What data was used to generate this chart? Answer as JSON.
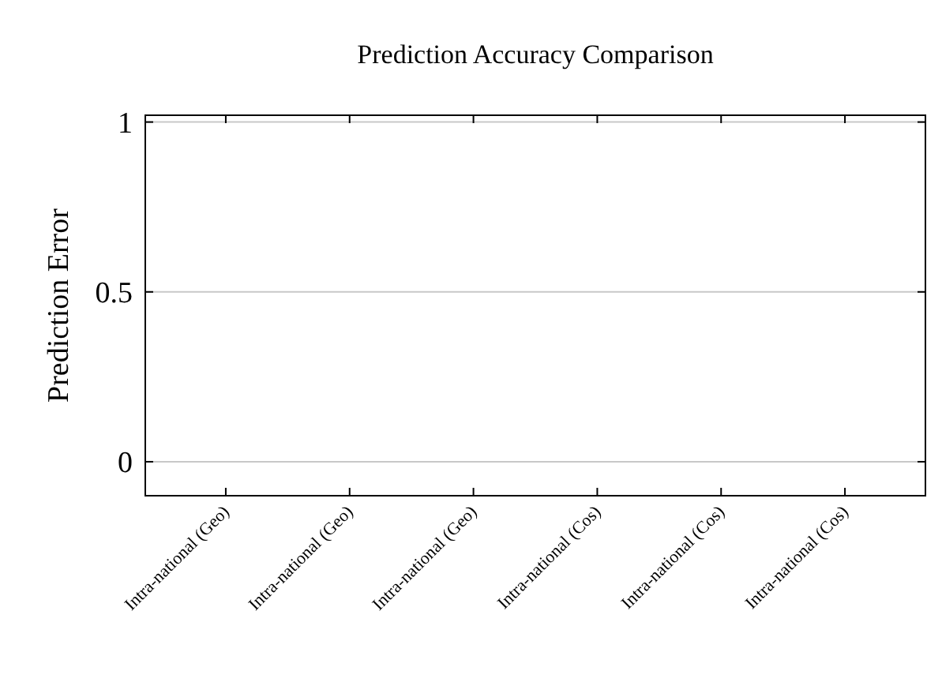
{
  "chart_data": {
    "type": "bar",
    "title": "Prediction Accuracy Comparison",
    "ylabel": "Prediction Error",
    "categories": [
      "Intra-national (Geo)",
      "Intra-national (Geo)",
      "Intra-national (Geo)",
      "Intra-national (Cos)",
      "Intra-national (Cos)",
      "Intra-national (Cos)"
    ],
    "values": [
      null,
      null,
      null,
      null,
      null,
      null
    ],
    "ylim": [
      -0.1,
      1.02
    ],
    "yticks": [
      0,
      {
        "value": 0.5,
        "label": "0.5"
      },
      1
    ],
    "grid": "y"
  }
}
